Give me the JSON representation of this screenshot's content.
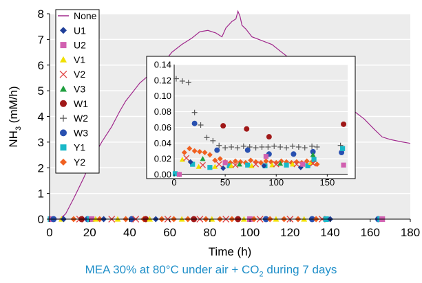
{
  "caption": {
    "before_sub": "MEA 30% at 80°C under air + CO",
    "sub": "2",
    "after_sub": " during 7 days"
  },
  "chart_data": [
    {
      "type": "scatter",
      "xlabel": "Time (h)",
      "ylabel": {
        "main": "NH",
        "sub": "3",
        "rest": " (mM/h)"
      },
      "xlim": [
        0,
        180
      ],
      "ylim": [
        0,
        8
      ],
      "xticks": [
        0,
        20,
        40,
        60,
        80,
        100,
        120,
        140,
        160,
        180
      ],
      "yticks": [
        0,
        1,
        2,
        3,
        4,
        5,
        6,
        7,
        8
      ],
      "grid": "horizontal",
      "plot_bg": "#ececec",
      "legend_position": "left",
      "legend": [
        {
          "name": "None",
          "marker": "line",
          "color": "#a0288c"
        },
        {
          "name": "U1",
          "marker": "diamond",
          "color": "#1f3f99"
        },
        {
          "name": "U2",
          "marker": "square",
          "color": "#d160b0"
        },
        {
          "name": "V1",
          "marker": "triangle",
          "color": "#f0e000"
        },
        {
          "name": "V2",
          "marker": "x",
          "color": "#e04040"
        },
        {
          "name": "V3",
          "marker": "triangle",
          "color": "#1e9e3e"
        },
        {
          "name": "W1",
          "marker": "circle",
          "color": "#a01818"
        },
        {
          "name": "W2",
          "marker": "plus",
          "color": "#555555"
        },
        {
          "name": "W3",
          "marker": "circle",
          "color": "#2850b0"
        },
        {
          "name": "Y1",
          "marker": "square",
          "color": "#19b8c8"
        },
        {
          "name": "Y2",
          "marker": "diamond",
          "color": "#f06020"
        }
      ],
      "series": [
        {
          "name": "None",
          "type": "line",
          "x": [
            0,
            5,
            8,
            12,
            17,
            21,
            26,
            31,
            35,
            38,
            41,
            45,
            48,
            52,
            57,
            61,
            66,
            71,
            75,
            79,
            83,
            86,
            88,
            91,
            93,
            94,
            95,
            96,
            98,
            101,
            106,
            111,
            115,
            120,
            123,
            127,
            132,
            137,
            142,
            147,
            152,
            157,
            162,
            166,
            170,
            175,
            180
          ],
          "y": [
            0,
            0,
            0.2,
            0.8,
            1.6,
            2.3,
            3.0,
            3.6,
            4.2,
            4.6,
            4.9,
            5.3,
            5.5,
            5.8,
            6.1,
            6.5,
            6.8,
            7.05,
            7.3,
            7.35,
            7.25,
            7.1,
            7.45,
            7.7,
            7.8,
            8.1,
            7.9,
            7.55,
            7.4,
            7.1,
            6.95,
            6.8,
            6.55,
            6.25,
            5.9,
            5.6,
            5.3,
            5.0,
            4.7,
            4.45,
            4.2,
            3.9,
            3.5,
            3.2,
            3.1,
            3.02,
            2.95
          ]
        }
      ],
      "markers_on_axis": {
        "y": 0,
        "points": [
          {
            "series": "Y1",
            "x": 0.5
          },
          {
            "series": "U2",
            "x": 1
          },
          {
            "series": "W3",
            "x": 2
          },
          {
            "series": "V1",
            "x": 6
          },
          {
            "series": "U1",
            "x": 7
          },
          {
            "series": "Y2",
            "x": 12
          },
          {
            "series": "V2",
            "x": 15
          },
          {
            "series": "W1",
            "x": 16
          },
          {
            "series": "W3",
            "x": 19
          },
          {
            "series": "Y1",
            "x": 20
          },
          {
            "series": "U2",
            "x": 21
          },
          {
            "series": "V1",
            "x": 23
          },
          {
            "series": "Y2",
            "x": 25
          },
          {
            "series": "U1",
            "x": 27
          },
          {
            "series": "V2",
            "x": 31
          },
          {
            "series": "V1",
            "x": 34
          },
          {
            "series": "Y2",
            "x": 38
          },
          {
            "series": "W3",
            "x": 41
          },
          {
            "series": "V2",
            "x": 43
          },
          {
            "series": "Y2",
            "x": 47
          },
          {
            "series": "W1",
            "x": 48
          },
          {
            "series": "V1",
            "x": 50
          },
          {
            "series": "U1",
            "x": 53
          },
          {
            "series": "Y2",
            "x": 56
          },
          {
            "series": "V2",
            "x": 59
          },
          {
            "series": "Y2",
            "x": 62
          },
          {
            "series": "V1",
            "x": 66
          },
          {
            "series": "Y2",
            "x": 69
          },
          {
            "series": "W1",
            "x": 72
          },
          {
            "series": "V2",
            "x": 75
          },
          {
            "series": "Y2",
            "x": 78
          },
          {
            "series": "V1",
            "x": 81
          },
          {
            "series": "Y2",
            "x": 85
          },
          {
            "series": "V2",
            "x": 88
          },
          {
            "series": "Y2",
            "x": 91
          },
          {
            "series": "W1",
            "x": 94
          },
          {
            "series": "V1",
            "x": 97
          },
          {
            "series": "U2",
            "x": 100
          },
          {
            "series": "Y2",
            "x": 102
          },
          {
            "series": "V2",
            "x": 105
          },
          {
            "series": "W3",
            "x": 108
          },
          {
            "series": "Y2",
            "x": 110
          },
          {
            "series": "V1",
            "x": 113
          },
          {
            "series": "Y2",
            "x": 117
          },
          {
            "series": "V2",
            "x": 120
          },
          {
            "series": "Y2",
            "x": 124
          },
          {
            "series": "V1",
            "x": 127
          },
          {
            "series": "W3",
            "x": 131
          },
          {
            "series": "Y2",
            "x": 133
          },
          {
            "series": "V2",
            "x": 136
          },
          {
            "series": "Y1",
            "x": 138
          },
          {
            "series": "U1",
            "x": 140
          },
          {
            "series": "W3",
            "x": 164
          },
          {
            "series": "Y1",
            "x": 165
          },
          {
            "series": "U2",
            "x": 166
          }
        ]
      }
    },
    {
      "type": "scatter",
      "xlim": [
        0,
        170
      ],
      "ylim": [
        0,
        0.14
      ],
      "xticks": [
        0,
        50,
        100,
        150
      ],
      "yticks": [
        0,
        0.02,
        0.04,
        0.06,
        0.08,
        0.1,
        0.12,
        0.14
      ],
      "ytick_labels": [
        "0.00",
        "0.02",
        "0.04",
        "0.06",
        "0.08",
        "0.10",
        "0.12",
        "0.14"
      ],
      "grid": "horizontal",
      "series": [
        {
          "name": "W2",
          "x": [
            2,
            8,
            14,
            20,
            26,
            32,
            38,
            44,
            50,
            56,
            62,
            68,
            74,
            80,
            86,
            92,
            98,
            104,
            110,
            116,
            122,
            128,
            135,
            140,
            163
          ],
          "y": [
            0.122,
            0.119,
            0.117,
            0.079,
            0.063,
            0.047,
            0.043,
            0.037,
            0.034,
            0.035,
            0.034,
            0.036,
            0.035,
            0.034,
            0.035,
            0.035,
            0.036,
            0.035,
            0.034,
            0.036,
            0.035,
            0.034,
            0.036,
            0.035,
            0.037
          ]
        },
        {
          "name": "W1",
          "x": [
            48,
            71,
            93,
            166
          ],
          "y": [
            0.062,
            0.058,
            0.048,
            0.064
          ]
        },
        {
          "name": "W3",
          "x": [
            20,
            42,
            72,
            93,
            117,
            136,
            164
          ],
          "y": [
            0.065,
            0.031,
            0.031,
            0.026,
            0.026,
            0.029,
            0.028
          ]
        },
        {
          "name": "Y2",
          "x": [
            5,
            10,
            15,
            20,
            25,
            30,
            35,
            40,
            45,
            50,
            55,
            60,
            65,
            70,
            75,
            80,
            85,
            90,
            95,
            100,
            105,
            110,
            115,
            120,
            125,
            130,
            135,
            140
          ],
          "y": [
            0,
            0.028,
            0.033,
            0.03,
            0.029,
            0.028,
            0.025,
            0.018,
            0.02,
            0.016,
            0.015,
            0.017,
            0.016,
            0.015,
            0.018,
            0.016,
            0.015,
            0.017,
            0.016,
            0.015,
            0.017,
            0.016,
            0.015,
            0.016,
            0.015,
            0.017,
            0.016,
            0.013
          ]
        },
        {
          "name": "Y1",
          "x": [
            1,
            18,
            35,
            54,
            72,
            89,
            110,
            131,
            137,
            165
          ],
          "y": [
            0.001,
            0.013,
            0.009,
            0.011,
            0.012,
            0.011,
            0.012,
            0.011,
            0.019,
            0.033
          ]
        },
        {
          "name": "V1",
          "x": [
            8,
            24,
            40,
            56,
            76,
            96,
            116,
            134
          ],
          "y": [
            0.019,
            0.01,
            0.01,
            0.011,
            0.011,
            0.012,
            0.013,
            0.015
          ]
        },
        {
          "name": "V2",
          "x": [
            12,
            28,
            44,
            60,
            80,
            100,
            120,
            136
          ],
          "y": [
            0.021,
            0.012,
            0.013,
            0.012,
            0.013,
            0.013,
            0.013,
            0.014
          ]
        },
        {
          "name": "V3",
          "x": [
            28,
            64,
            104,
            136
          ],
          "y": [
            0.02,
            0.013,
            0.014,
            0.025
          ]
        },
        {
          "name": "U1",
          "x": [
            16,
            48,
            88,
            124
          ],
          "y": [
            0.016,
            0.008,
            0.011,
            0.009
          ]
        },
        {
          "name": "U2",
          "x": [
            5,
            50,
            90,
            126,
            166
          ],
          "y": [
            0,
            0.015,
            0.023,
            0.013,
            0.012
          ]
        }
      ]
    }
  ]
}
